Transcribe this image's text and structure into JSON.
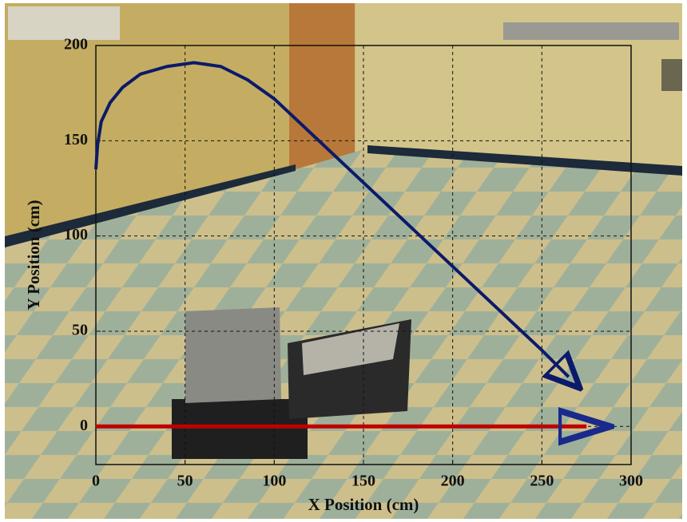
{
  "chart_data": {
    "type": "line",
    "xlabel": "X Position (cm)",
    "ylabel": "Y Position (cm)",
    "xlim": [
      0,
      300
    ],
    "ylim": [
      -20,
      200
    ],
    "xticks": [
      0,
      50,
      100,
      150,
      200,
      250,
      300
    ],
    "yticks": [
      0,
      50,
      100,
      150,
      200
    ],
    "grid": true,
    "series": [
      {
        "color": "#0b1a6a",
        "x": [
          0,
          1,
          3,
          8,
          15,
          25,
          40,
          55,
          70,
          85,
          100,
          125,
          150,
          175,
          200,
          225,
          250,
          265
        ],
        "values": [
          135,
          148,
          160,
          170,
          178,
          185,
          189,
          191,
          189,
          182,
          172,
          150,
          128,
          106,
          84,
          62,
          40,
          26
        ]
      },
      {
        "color": "#c00000",
        "x": [
          0,
          275
        ],
        "values": [
          0,
          0
        ]
      }
    ]
  }
}
